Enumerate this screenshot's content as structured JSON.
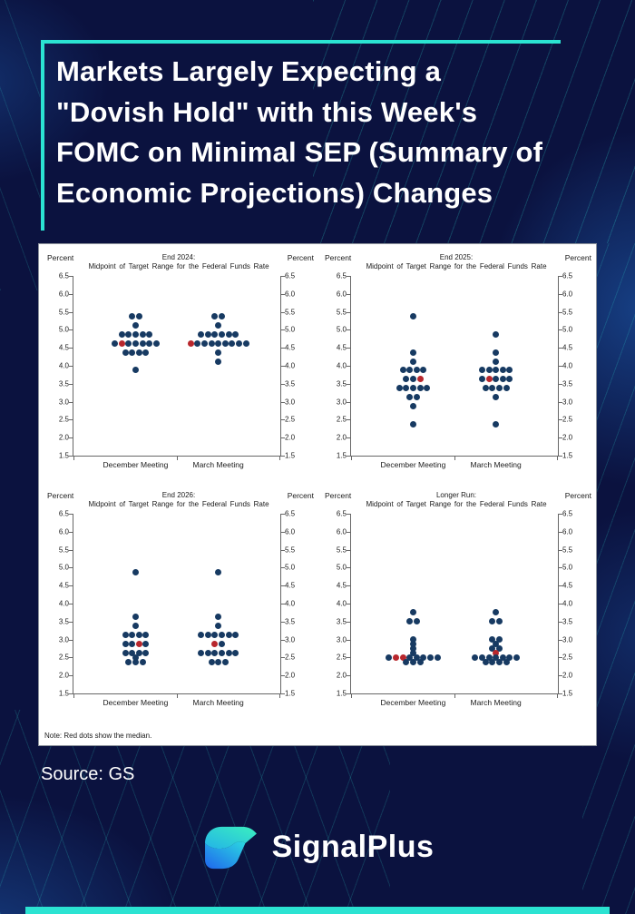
{
  "header": {
    "title_lines": [
      "Markets Largely Expecting a",
      "\"Dovish Hold\" with this Week's",
      "FOMC on Minimal SEP (Summary of",
      "Economic Projections) Changes"
    ]
  },
  "panel": {
    "note": "Note: Red dots show the median."
  },
  "footer": {
    "source": "Source: GS",
    "brand": "SignalPlus"
  },
  "colors": {
    "background": "#0B123F",
    "accent_teal": "#2BE3D2",
    "dot_navy": "#173A62",
    "dot_red": "#B8272D",
    "panel_bg": "#FFFFFF"
  },
  "chart_data": [
    {
      "type": "scatter",
      "id": "end-2024",
      "title_line1": "End 2024:",
      "title_line2": "Midpoint of Target Range for the Federal Funds Rate",
      "y_axis_label": "Percent",
      "ylim": [
        1.5,
        6.5
      ],
      "yticks": [
        "6.5",
        "6.0",
        "5.5",
        "5.0",
        "4.5",
        "4.0",
        "3.5",
        "3.0",
        "2.5",
        "2.0",
        "1.5"
      ],
      "grid": false,
      "categories": [
        "December Meeting",
        "March Meeting"
      ],
      "series": [
        {
          "name": "December Meeting",
          "rows": [
            {
              "y": 5.375,
              "count": 2
            },
            {
              "y": 5.125,
              "count": 1
            },
            {
              "y": 4.875,
              "count": 5
            },
            {
              "y": 4.625,
              "count": 7,
              "red": [
                1
              ]
            },
            {
              "y": 4.375,
              "count": 4
            },
            {
              "y": 3.875,
              "count": 1
            }
          ]
        },
        {
          "name": "March Meeting",
          "rows": [
            {
              "y": 5.375,
              "count": 2
            },
            {
              "y": 5.125,
              "count": 1
            },
            {
              "y": 4.875,
              "count": 6
            },
            {
              "y": 4.625,
              "count": 9,
              "red": [
                0
              ]
            },
            {
              "y": 4.375,
              "count": 1
            },
            {
              "y": 4.125,
              "count": 1
            }
          ]
        }
      ]
    },
    {
      "type": "scatter",
      "id": "end-2025",
      "title_line1": "End 2025:",
      "title_line2": "Midpoint of Target Range for the Federal Funds Rate",
      "y_axis_label": "Percent",
      "ylim": [
        1.5,
        6.5
      ],
      "yticks": [
        "6.5",
        "6.0",
        "5.5",
        "5.0",
        "4.5",
        "4.0",
        "3.5",
        "3.0",
        "2.5",
        "2.0",
        "1.5"
      ],
      "grid": false,
      "categories": [
        "December Meeting",
        "March Meeting"
      ],
      "series": [
        {
          "name": "December Meeting",
          "rows": [
            {
              "y": 5.375,
              "count": 1
            },
            {
              "y": 4.375,
              "count": 1
            },
            {
              "y": 4.125,
              "count": 1
            },
            {
              "y": 3.875,
              "count": 4
            },
            {
              "y": 3.625,
              "count": 3,
              "red": [
                2
              ]
            },
            {
              "y": 3.375,
              "count": 5
            },
            {
              "y": 3.125,
              "count": 2
            },
            {
              "y": 2.875,
              "count": 1
            },
            {
              "y": 2.375,
              "count": 1
            }
          ]
        },
        {
          "name": "March Meeting",
          "rows": [
            {
              "y": 4.875,
              "count": 1
            },
            {
              "y": 4.375,
              "count": 1
            },
            {
              "y": 4.125,
              "count": 1
            },
            {
              "y": 3.875,
              "count": 5
            },
            {
              "y": 3.625,
              "count": 5,
              "red": [
                1
              ]
            },
            {
              "y": 3.375,
              "count": 4
            },
            {
              "y": 3.125,
              "count": 1
            },
            {
              "y": 2.375,
              "count": 1
            }
          ]
        }
      ]
    },
    {
      "type": "scatter",
      "id": "end-2026",
      "title_line1": "End 2026:",
      "title_line2": "Midpoint of Target Range for the Federal Funds Rate",
      "y_axis_label": "Percent",
      "ylim": [
        1.5,
        6.5
      ],
      "yticks": [
        "6.5",
        "6.0",
        "5.5",
        "5.0",
        "4.5",
        "4.0",
        "3.5",
        "3.0",
        "2.5",
        "2.0",
        "1.5"
      ],
      "grid": false,
      "categories": [
        "December Meeting",
        "March Meeting"
      ],
      "series": [
        {
          "name": "December Meeting",
          "rows": [
            {
              "y": 4.875,
              "count": 1
            },
            {
              "y": 3.625,
              "count": 1
            },
            {
              "y": 3.375,
              "count": 1
            },
            {
              "y": 3.125,
              "count": 4
            },
            {
              "y": 2.875,
              "count": 4,
              "red": [
                2
              ]
            },
            {
              "y": 2.625,
              "count": 4
            },
            {
              "y": 2.5,
              "count": 1
            },
            {
              "y": 2.375,
              "count": 3
            }
          ]
        },
        {
          "name": "March Meeting",
          "rows": [
            {
              "y": 4.875,
              "count": 1
            },
            {
              "y": 3.625,
              "count": 1
            },
            {
              "y": 3.375,
              "count": 1
            },
            {
              "y": 3.125,
              "count": 6
            },
            {
              "y": 2.875,
              "count": 2,
              "red": [
                0
              ]
            },
            {
              "y": 2.625,
              "count": 6
            },
            {
              "y": 2.375,
              "count": 3
            }
          ]
        }
      ]
    },
    {
      "type": "scatter",
      "id": "longer-run",
      "title_line1": "Longer Run:",
      "title_line2": "Midpoint of Target Range for the Federal Funds Rate",
      "y_axis_label": "Percent",
      "ylim": [
        1.5,
        6.5
      ],
      "yticks": [
        "6.5",
        "6.0",
        "5.5",
        "5.0",
        "4.5",
        "4.0",
        "3.5",
        "3.0",
        "2.5",
        "2.0",
        "1.5"
      ],
      "grid": false,
      "categories": [
        "December Meeting",
        "March Meeting"
      ],
      "series": [
        {
          "name": "December Meeting",
          "rows": [
            {
              "y": 3.75,
              "count": 1
            },
            {
              "y": 3.5,
              "count": 2
            },
            {
              "y": 3.0,
              "count": 1
            },
            {
              "y": 2.875,
              "count": 1
            },
            {
              "y": 2.75,
              "count": 1
            },
            {
              "y": 2.625,
              "count": 1
            },
            {
              "y": 2.5,
              "count": 8,
              "red": [
                1,
                2
              ]
            },
            {
              "y": 2.375,
              "count": 3
            }
          ]
        },
        {
          "name": "March Meeting",
          "rows": [
            {
              "y": 3.75,
              "count": 1
            },
            {
              "y": 3.5,
              "count": 2
            },
            {
              "y": 3.0,
              "count": 2
            },
            {
              "y": 2.875,
              "count": 1
            },
            {
              "y": 2.75,
              "count": 2
            },
            {
              "y": 2.625,
              "count": 1,
              "red": [
                0
              ]
            },
            {
              "y": 2.5,
              "count": 7
            },
            {
              "y": 2.375,
              "count": 4
            }
          ]
        }
      ]
    }
  ]
}
